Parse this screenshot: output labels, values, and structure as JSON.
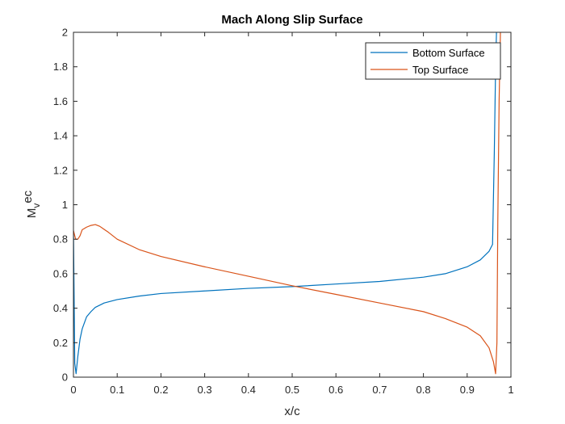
{
  "colors": {
    "bottom_surface": "#0072BD",
    "top_surface": "#D95319",
    "axis": "#262626"
  },
  "chart_data": {
    "type": "line",
    "title": "Mach Along Slip Surface",
    "xlabel": "x/c",
    "ylabel": "M_vec",
    "ylabel_main": "M",
    "ylabel_sub": "v",
    "ylabel_sup": "ec",
    "xlim": [
      0,
      1
    ],
    "ylim": [
      0,
      2
    ],
    "xticks": [
      "0",
      "0.1",
      "0.2",
      "0.3",
      "0.4",
      "0.5",
      "0.6",
      "0.7",
      "0.8",
      "0.9",
      "1"
    ],
    "yticks": [
      "0",
      "0.2",
      "0.4",
      "0.6",
      "0.8",
      "1",
      "1.2",
      "1.4",
      "1.6",
      "1.8",
      "2"
    ],
    "grid": false,
    "legend_position": "top-right",
    "series": [
      {
        "name": "Bottom Surface",
        "color": "#0072BD",
        "x": [
          0.0,
          0.001,
          0.003,
          0.006,
          0.01,
          0.015,
          0.02,
          0.03,
          0.04,
          0.05,
          0.07,
          0.1,
          0.15,
          0.2,
          0.3,
          0.4,
          0.5,
          0.6,
          0.7,
          0.8,
          0.85,
          0.9,
          0.93,
          0.95,
          0.958,
          0.962,
          0.965,
          0.967
        ],
        "y": [
          0.85,
          0.6,
          0.08,
          0.02,
          0.12,
          0.22,
          0.28,
          0.35,
          0.38,
          0.405,
          0.43,
          0.45,
          0.47,
          0.485,
          0.5,
          0.515,
          0.525,
          0.54,
          0.555,
          0.58,
          0.6,
          0.64,
          0.68,
          0.73,
          0.77,
          1.3,
          1.8,
          2.0
        ]
      },
      {
        "name": "Top Surface",
        "color": "#D95319",
        "x": [
          0.0,
          0.002,
          0.005,
          0.01,
          0.015,
          0.02,
          0.03,
          0.04,
          0.05,
          0.06,
          0.08,
          0.1,
          0.15,
          0.2,
          0.3,
          0.4,
          0.5,
          0.6,
          0.7,
          0.8,
          0.85,
          0.9,
          0.93,
          0.95,
          0.96,
          0.965,
          0.968,
          0.97,
          0.973,
          0.976
        ],
        "y": [
          0.85,
          0.83,
          0.8,
          0.8,
          0.82,
          0.855,
          0.87,
          0.88,
          0.885,
          0.875,
          0.84,
          0.8,
          0.74,
          0.7,
          0.64,
          0.585,
          0.53,
          0.48,
          0.43,
          0.38,
          0.34,
          0.29,
          0.24,
          0.17,
          0.09,
          0.02,
          0.2,
          0.9,
          1.6,
          2.0
        ]
      }
    ]
  }
}
